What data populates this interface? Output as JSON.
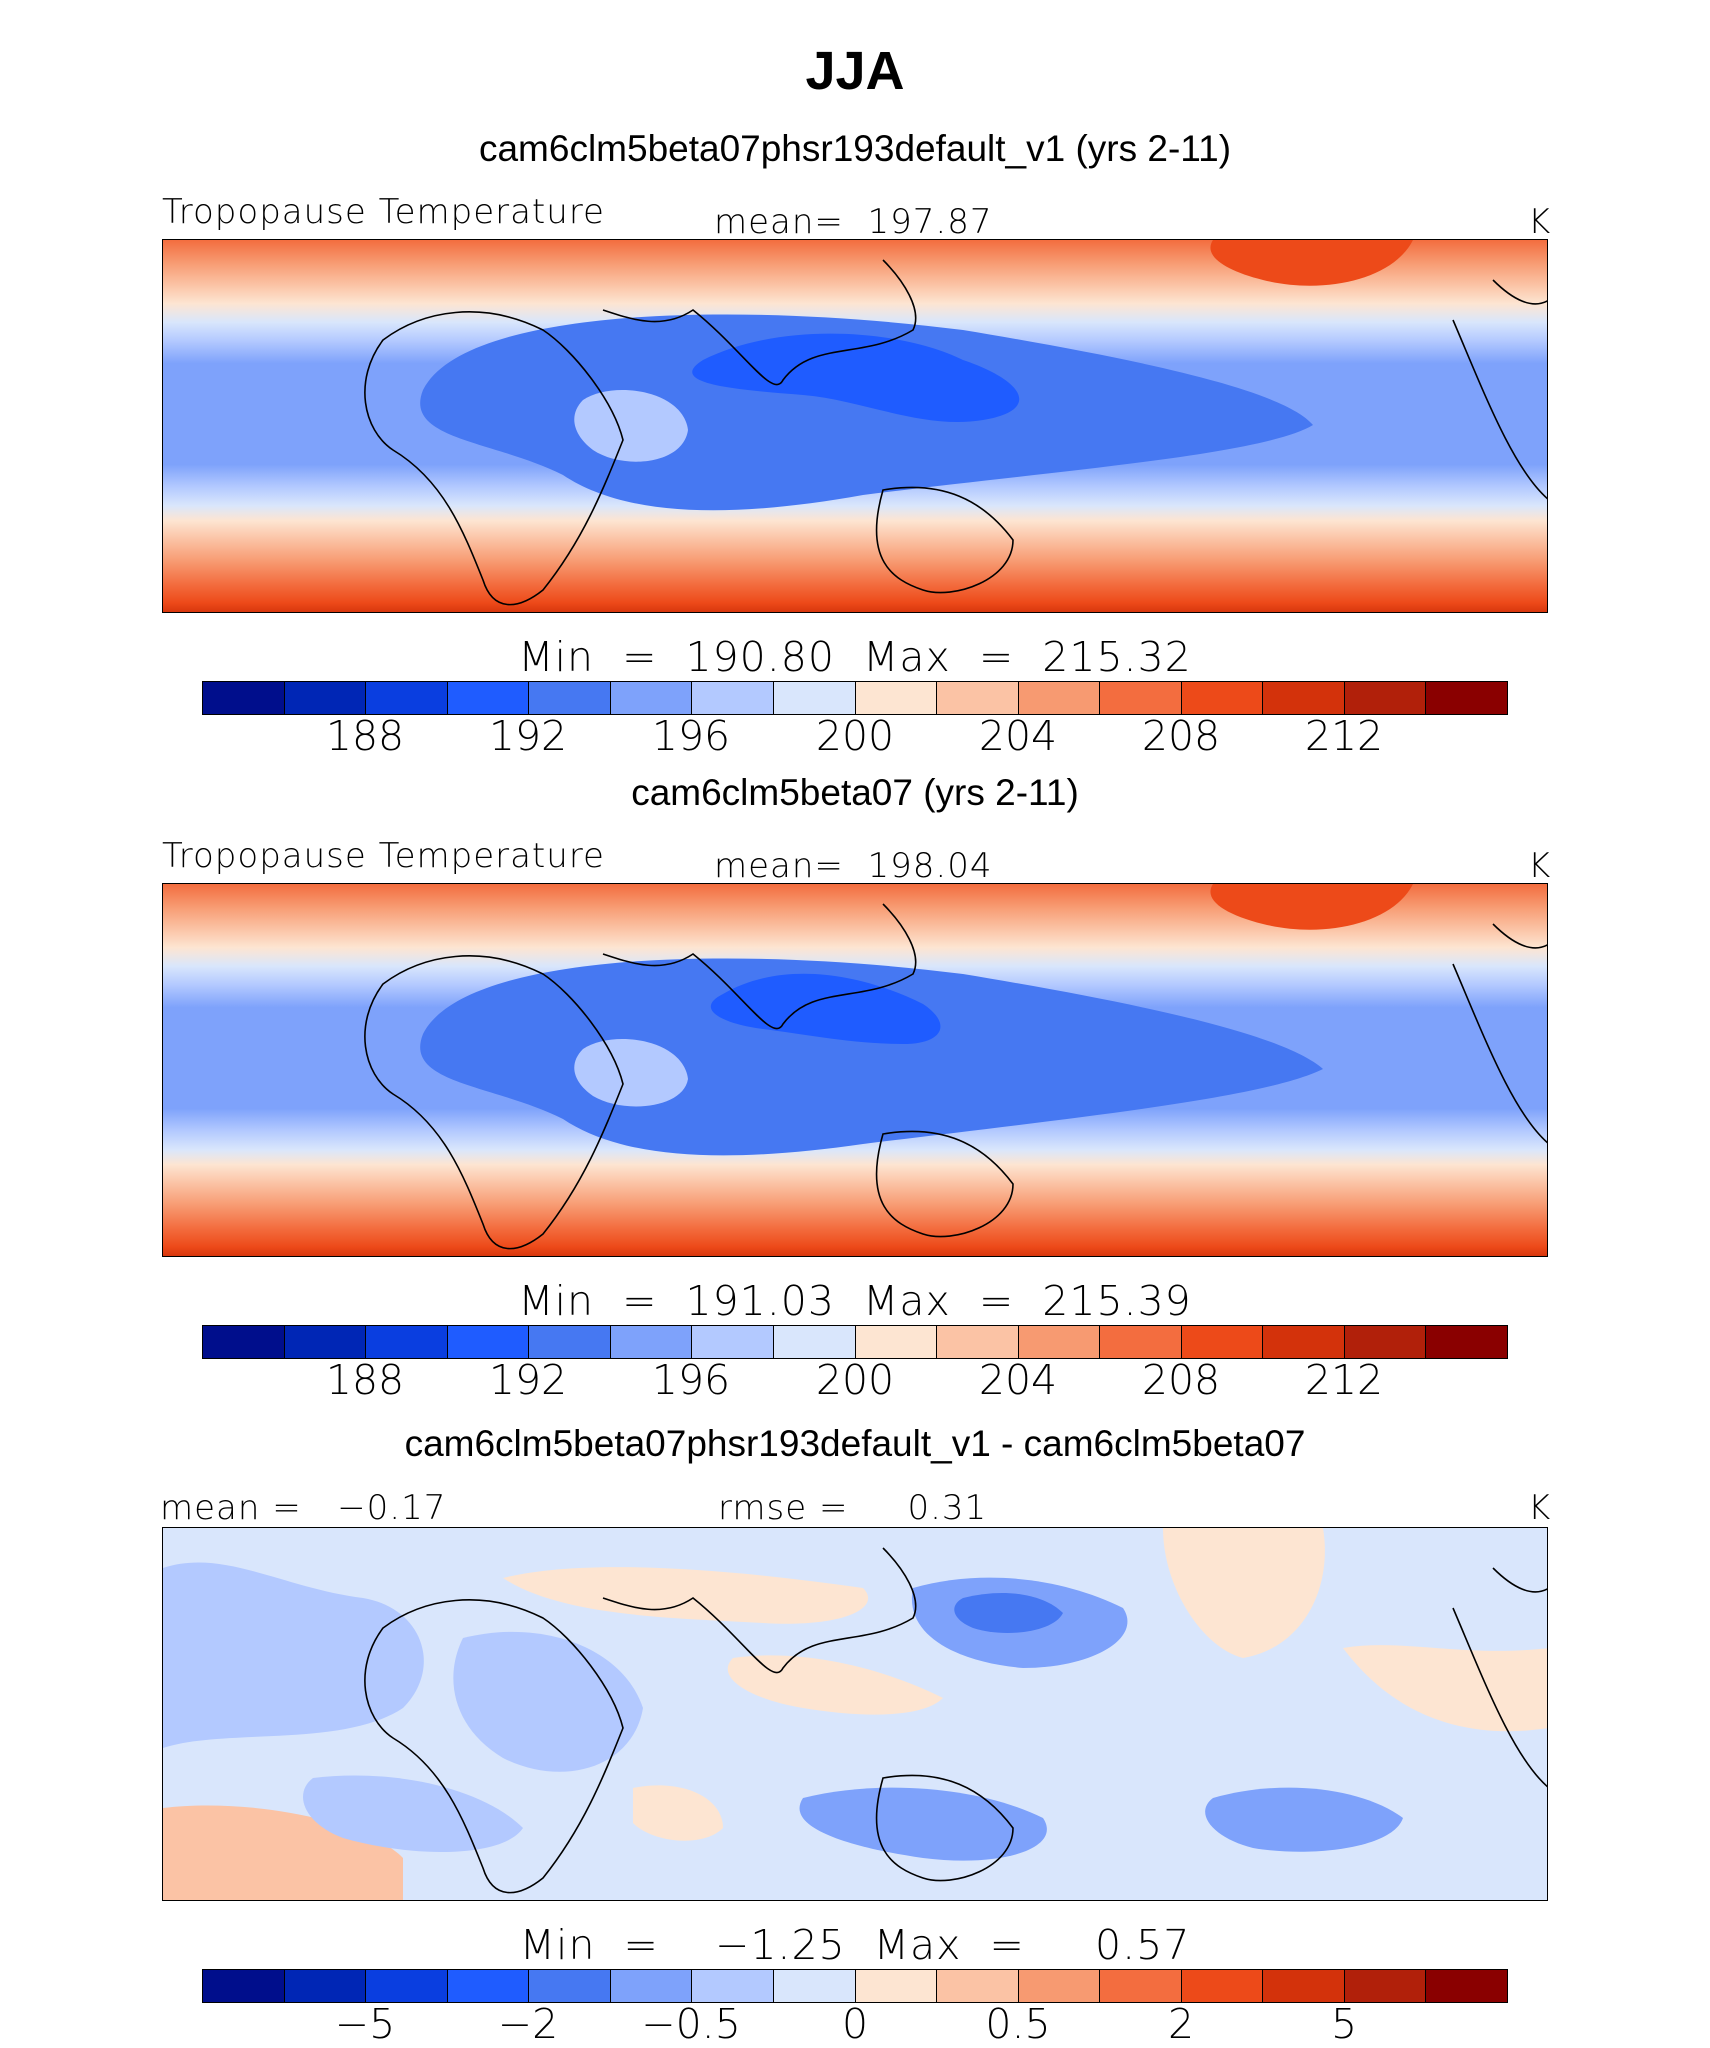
{
  "title": "JJA",
  "panels": [
    {
      "title": "cam6clm5beta07phsr193default_v1 (yrs 2-11)",
      "left_label": "Tropopause Temperature",
      "center_label": "mean=  197.87",
      "units": "K",
      "minmax": "Min  =  190.80  Max  =  215.32",
      "colorbar_ticks": [
        "188",
        "192",
        "196",
        "200",
        "204",
        "208",
        "212"
      ]
    },
    {
      "title": "cam6clm5beta07 (yrs 2-11)",
      "left_label": "Tropopause Temperature",
      "center_label": "mean=  198.04",
      "units": "K",
      "minmax": "Min  =  191.03  Max  =  215.39",
      "colorbar_ticks": [
        "188",
        "192",
        "196",
        "200",
        "204",
        "208",
        "212"
      ]
    },
    {
      "title": "cam6clm5beta07phsr193default_v1 - cam6clm5beta07",
      "left_label": "mean =   −0.17",
      "center_label": "rmse =     0.31",
      "units": "K",
      "minmax": "Min  =    −1.25  Max  =     0.57",
      "colorbar_ticks": [
        "−5",
        "−2",
        "−0.5",
        "0",
        "0.5",
        "2",
        "5"
      ]
    }
  ],
  "colorbar_colors": [
    "#000e8c",
    "#0026b5",
    "#0a3ee0",
    "#1f5cff",
    "#4678f2",
    "#7ea2fb",
    "#b3c9ff",
    "#d9e6fc",
    "#fde5d2",
    "#fbc3a5",
    "#f79a71",
    "#f36d3f",
    "#ed4a19",
    "#d3320b",
    "#b1200a",
    "#8a0000"
  ]
}
